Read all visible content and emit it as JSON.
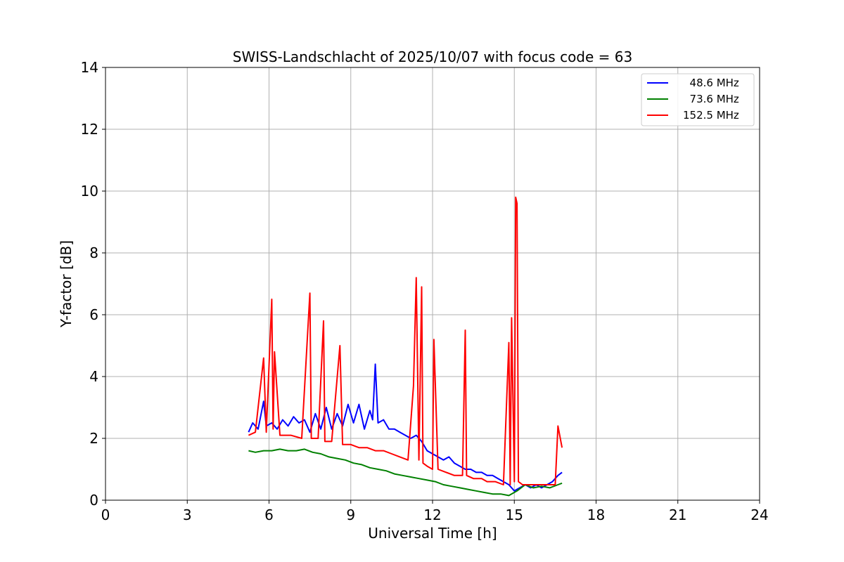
{
  "chart_data": {
    "type": "line",
    "title": "SWISS-Landschlacht of 2025/10/07 with focus code = 63",
    "xlabel": "Universal Time [h]",
    "ylabel": "Y-factor [dB]",
    "xlim": [
      0,
      24
    ],
    "ylim": [
      0,
      14
    ],
    "xticks": [
      0,
      3,
      6,
      9,
      12,
      15,
      18,
      21,
      24
    ],
    "yticks": [
      0,
      2,
      4,
      6,
      8,
      10,
      12,
      14
    ],
    "grid": true,
    "legend_position": "top-right",
    "series": [
      {
        "name": "  48.6 MHz",
        "color": "#0000ff",
        "x": [
          5.25,
          5.4,
          5.6,
          5.8,
          5.9,
          6.1,
          6.3,
          6.5,
          6.7,
          6.9,
          7.1,
          7.3,
          7.5,
          7.7,
          7.9,
          8.1,
          8.3,
          8.5,
          8.7,
          8.9,
          9.1,
          9.3,
          9.5,
          9.7,
          9.8,
          9.9,
          10.0,
          10.2,
          10.4,
          10.6,
          10.8,
          11.0,
          11.2,
          11.4,
          11.6,
          11.8,
          12.0,
          12.2,
          12.4,
          12.6,
          12.8,
          13.0,
          13.2,
          13.4,
          13.6,
          13.8,
          14.0,
          14.2,
          14.4,
          14.6,
          14.8,
          15.0,
          15.2,
          15.4,
          15.6,
          15.8,
          16.0,
          16.2,
          16.4,
          16.6,
          16.75
        ],
        "y": [
          2.2,
          2.5,
          2.3,
          3.2,
          2.4,
          2.5,
          2.3,
          2.6,
          2.4,
          2.7,
          2.5,
          2.6,
          2.2,
          2.8,
          2.3,
          3.0,
          2.3,
          2.8,
          2.4,
          3.1,
          2.5,
          3.1,
          2.3,
          2.9,
          2.6,
          4.4,
          2.5,
          2.6,
          2.3,
          2.3,
          2.2,
          2.1,
          2.0,
          2.1,
          1.9,
          1.6,
          1.5,
          1.4,
          1.3,
          1.4,
          1.2,
          1.1,
          1.0,
          1.0,
          0.9,
          0.9,
          0.8,
          0.8,
          0.7,
          0.6,
          0.5,
          0.3,
          0.4,
          0.5,
          0.4,
          0.5,
          0.4,
          0.5,
          0.6,
          0.8,
          0.9
        ]
      },
      {
        "name": "  73.6 MHz",
        "color": "#008000",
        "x": [
          5.25,
          5.5,
          5.8,
          6.1,
          6.4,
          6.7,
          7.0,
          7.3,
          7.6,
          7.9,
          8.2,
          8.5,
          8.8,
          9.1,
          9.4,
          9.7,
          10.0,
          10.3,
          10.6,
          10.9,
          11.2,
          11.5,
          11.8,
          12.1,
          12.4,
          12.7,
          13.0,
          13.3,
          13.6,
          13.9,
          14.2,
          14.5,
          14.8,
          15.1,
          15.4,
          15.7,
          16.0,
          16.3,
          16.6,
          16.75
        ],
        "y": [
          1.6,
          1.55,
          1.6,
          1.6,
          1.65,
          1.6,
          1.6,
          1.65,
          1.55,
          1.5,
          1.4,
          1.35,
          1.3,
          1.2,
          1.15,
          1.05,
          1.0,
          0.95,
          0.85,
          0.8,
          0.75,
          0.7,
          0.65,
          0.6,
          0.5,
          0.45,
          0.4,
          0.35,
          0.3,
          0.25,
          0.2,
          0.2,
          0.15,
          0.3,
          0.5,
          0.4,
          0.45,
          0.4,
          0.5,
          0.55
        ]
      },
      {
        "name": "152.5 MHz",
        "color": "#ff0000",
        "x": [
          5.25,
          5.5,
          5.8,
          5.9,
          6.1,
          6.15,
          6.2,
          6.4,
          6.8,
          7.2,
          7.5,
          7.55,
          7.8,
          8.0,
          8.05,
          8.3,
          8.6,
          8.7,
          9.0,
          9.3,
          9.6,
          9.9,
          10.2,
          10.5,
          10.8,
          11.1,
          11.3,
          11.4,
          11.5,
          11.6,
          11.65,
          11.8,
          12.0,
          12.05,
          12.2,
          12.5,
          12.8,
          13.1,
          13.2,
          13.25,
          13.5,
          13.8,
          14.0,
          14.3,
          14.6,
          14.8,
          14.85,
          14.9,
          15.0,
          15.05,
          15.1,
          15.15,
          15.3,
          15.6,
          15.9,
          16.2,
          16.5,
          16.6,
          16.75
        ],
        "y": [
          2.1,
          2.2,
          4.6,
          2.2,
          6.5,
          2.3,
          4.8,
          2.1,
          2.1,
          2.0,
          6.7,
          2.0,
          2.0,
          5.8,
          1.9,
          1.9,
          5.0,
          1.8,
          1.8,
          1.7,
          1.7,
          1.6,
          1.6,
          1.5,
          1.4,
          1.3,
          3.7,
          7.2,
          1.3,
          6.9,
          1.2,
          1.1,
          1.0,
          5.2,
          1.0,
          0.9,
          0.8,
          0.8,
          5.5,
          0.8,
          0.7,
          0.7,
          0.6,
          0.6,
          0.5,
          5.1,
          0.5,
          5.9,
          0.6,
          9.8,
          9.6,
          0.6,
          0.5,
          0.5,
          0.5,
          0.5,
          0.5,
          2.4,
          1.7
        ]
      }
    ]
  }
}
